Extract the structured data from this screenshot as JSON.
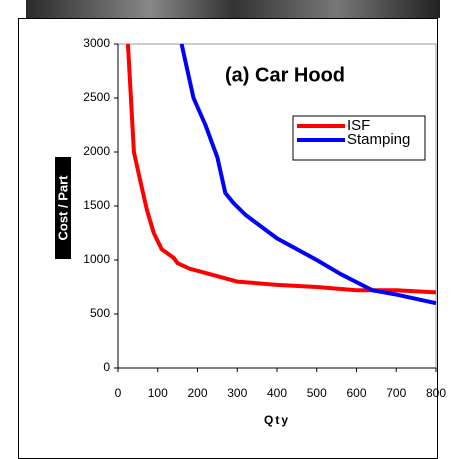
{
  "chart_data": {
    "type": "line",
    "title": "(a) Car Hood",
    "x_label": "Qty",
    "y_label": "Cost / Part",
    "xlim": [
      0,
      800
    ],
    "xticks": [
      0,
      100,
      200,
      300,
      400,
      500,
      600,
      700,
      800
    ],
    "ylim": [
      0,
      3000
    ],
    "yticks": [
      0,
      500,
      1000,
      1500,
      2000,
      2500,
      3000
    ],
    "legend": "upper right",
    "series": [
      {
        "name": "ISF",
        "color": "#ff0000",
        "x": [
          25,
          40,
          55,
          73,
          90,
          110,
          140,
          150,
          180,
          200,
          250,
          300,
          400,
          500,
          600,
          700,
          800
        ],
        "values": [
          3000,
          2000,
          1750,
          1460,
          1250,
          1100,
          1020,
          970,
          920,
          900,
          850,
          800,
          770,
          750,
          720,
          720,
          700
        ]
      },
      {
        "name": "Stamping",
        "color": "#0000ff",
        "x": [
          160,
          190,
          220,
          250,
          270,
          290,
          320,
          400,
          500,
          560,
          640,
          700,
          800
        ],
        "values": [
          3000,
          2500,
          2250,
          1950,
          1620,
          1530,
          1420,
          1200,
          1000,
          870,
          720,
          680,
          600
        ]
      }
    ]
  }
}
